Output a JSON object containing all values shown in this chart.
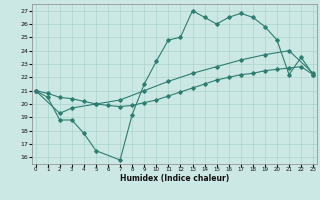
{
  "xlabel": "Humidex (Indice chaleur)",
  "bg_color": "#cce8e4",
  "grid_color": "#aad4cc",
  "line_color": "#2d7d70",
  "xlim": [
    -0.3,
    23.3
  ],
  "ylim": [
    15.5,
    27.5
  ],
  "yticks": [
    16,
    17,
    18,
    19,
    20,
    21,
    22,
    23,
    24,
    25,
    26,
    27
  ],
  "xticks": [
    0,
    1,
    2,
    3,
    4,
    5,
    6,
    7,
    8,
    9,
    10,
    11,
    12,
    13,
    14,
    15,
    16,
    17,
    18,
    19,
    20,
    21,
    22,
    23
  ],
  "line1_x": [
    0,
    1,
    2,
    3,
    4,
    5,
    7,
    8,
    9,
    10,
    11,
    12,
    13,
    14,
    15,
    16,
    17,
    18,
    19,
    20,
    21,
    22,
    23
  ],
  "line1_y": [
    21.0,
    20.5,
    18.8,
    18.8,
    17.8,
    16.5,
    15.8,
    19.2,
    21.5,
    23.2,
    24.8,
    25.0,
    27.0,
    26.5,
    26.0,
    26.5,
    26.8,
    26.5,
    25.8,
    24.8,
    22.2,
    23.5,
    22.2
  ],
  "line2_x": [
    0,
    2,
    3,
    5,
    7,
    9,
    11,
    13,
    15,
    17,
    19,
    21,
    23
  ],
  "line2_y": [
    21.0,
    19.3,
    19.7,
    20.0,
    20.3,
    21.0,
    21.7,
    22.3,
    22.8,
    23.3,
    23.7,
    24.0,
    22.3
  ],
  "line3_x": [
    0,
    1,
    2,
    3,
    4,
    5,
    6,
    7,
    8,
    9,
    10,
    11,
    12,
    13,
    14,
    15,
    16,
    17,
    18,
    19,
    20,
    21,
    22,
    23
  ],
  "line3_y": [
    21.0,
    20.8,
    20.5,
    20.4,
    20.2,
    20.0,
    19.9,
    19.8,
    19.9,
    20.1,
    20.3,
    20.6,
    20.9,
    21.2,
    21.5,
    21.8,
    22.0,
    22.2,
    22.3,
    22.5,
    22.6,
    22.7,
    22.8,
    22.2
  ]
}
